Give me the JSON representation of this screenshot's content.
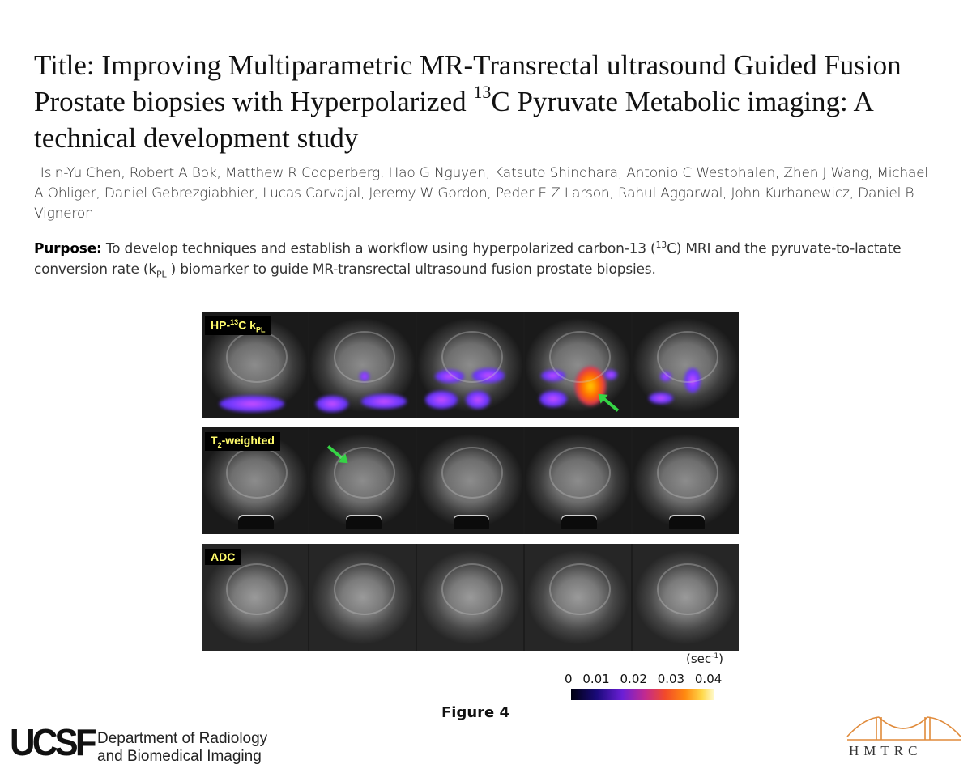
{
  "title": {
    "prefix": "Title: Improving Multiparametric MR-Transrectal ultrasound Guided Fusion Prostate biopsies with Hyperpolarized ",
    "sup": "13",
    "suffix": "C Pyruvate Metabolic imaging: A technical development study"
  },
  "authors": "Hsin-Yu Chen, Robert A Bok, Matthew R Cooperberg, Hao G Nguyen, Katsuto Shinohara, Antonio C Westphalen, Zhen J Wang, Michael A Ohliger, Daniel Gebrezgiabhier, Lucas Carvajal, Jeremy W Gordon, Peder E Z Larson, Rahul Aggarwal, John Kurhanewicz, Daniel B Vigneron",
  "purpose": {
    "label": "Purpose:",
    "text1": " To develop techniques and establish a workflow using hyperpolarized carbon-13 (",
    "sup": "13",
    "text2": "C) MRI and the pyruvate-to-lactate conversion rate (k",
    "sub": "PL",
    "text3": " ) biomarker to guide MR-transrectal ultrasound fusion prostate biopsies."
  },
  "figure": {
    "rows": [
      {
        "label_pre": "HP-",
        "label_sup": "13",
        "label_mid": "C k",
        "label_sub": "PL",
        "label_post": ""
      },
      {
        "label_pre": "T",
        "label_sup": "",
        "label_mid": "",
        "label_sub": "2",
        "label_post": "-weighted"
      },
      {
        "label_pre": "ADC",
        "label_sup": "",
        "label_mid": "",
        "label_sub": "",
        "label_post": ""
      }
    ],
    "units_pre": "(sec",
    "units_sup": "-1",
    "units_post": ")",
    "colorbar_ticks": [
      "0",
      "0.01",
      "0.02",
      "0.03",
      "0.04"
    ],
    "caption": "Figure 4",
    "colors": {
      "label_bg": "#000000",
      "label_text": "#fffb6b",
      "arrow": "#35d445"
    }
  },
  "footer": {
    "ucsf_logo": "UCSF",
    "dept_line1": "Department of Radiology",
    "dept_line2": "and Biomedical Imaging",
    "hmtrc": "HMTRC"
  }
}
